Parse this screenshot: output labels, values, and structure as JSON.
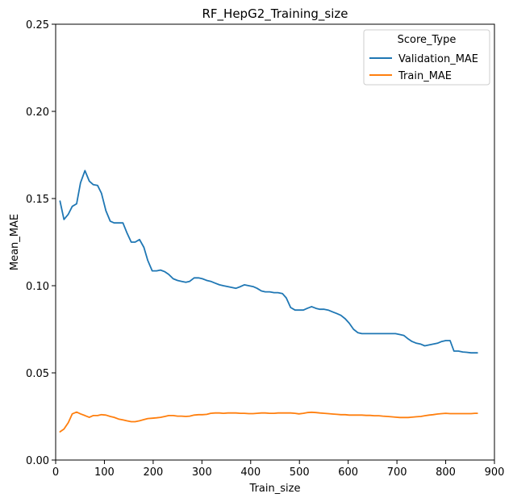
{
  "chart_data": {
    "type": "line",
    "title": "RF_HepG2_Training_size",
    "xlabel": "Train_size",
    "ylabel": "Mean_MAE",
    "xlim": [
      0,
      900
    ],
    "ylim": [
      0,
      0.25
    ],
    "x_ticks": [
      "0",
      "100",
      "200",
      "300",
      "400",
      "500",
      "600",
      "700",
      "800",
      "900"
    ],
    "y_ticks": [
      "0.00",
      "0.05",
      "0.10",
      "0.15",
      "0.20",
      "0.25"
    ],
    "grid": false,
    "legend": {
      "title": "Score_Type",
      "position": "top-right"
    },
    "series": [
      {
        "name": "Validation_MAE",
        "color": "#1f77b4",
        "x": [
          9,
          17,
          26,
          34,
          43,
          51,
          60,
          69,
          77,
          86,
          94,
          103,
          112,
          120,
          129,
          138,
          146,
          155,
          163,
          172,
          181,
          189,
          198,
          207,
          215,
          224,
          232,
          241,
          250,
          258,
          267,
          275,
          284,
          293,
          301,
          310,
          318,
          327,
          336,
          344,
          353,
          362,
          370,
          379,
          387,
          396,
          405,
          413,
          422,
          430,
          439,
          448,
          456,
          465,
          473,
          482,
          491,
          499,
          508,
          516,
          525,
          534,
          542,
          551,
          559,
          568,
          577,
          585,
          594,
          602,
          611,
          620,
          628,
          637,
          645,
          654,
          663,
          671,
          680,
          688,
          697,
          706,
          714,
          723,
          731,
          740,
          749,
          757,
          766,
          774,
          783,
          792,
          800,
          809,
          817,
          826,
          835,
          843,
          852,
          860,
          865
        ],
        "values": [
          0.1485,
          0.138,
          0.141,
          0.1455,
          0.147,
          0.159,
          0.166,
          0.16,
          0.158,
          0.1575,
          0.153,
          0.143,
          0.137,
          0.136,
          0.136,
          0.136,
          0.1305,
          0.125,
          0.125,
          0.1265,
          0.122,
          0.1145,
          0.1085,
          0.1085,
          0.109,
          0.108,
          0.1065,
          0.104,
          0.103,
          0.1025,
          0.102,
          0.1025,
          0.1045,
          0.1045,
          0.104,
          0.103,
          0.1025,
          0.1015,
          0.1005,
          0.1,
          0.0995,
          0.099,
          0.0985,
          0.0995,
          0.1005,
          0.1,
          0.0995,
          0.0985,
          0.097,
          0.0965,
          0.0965,
          0.096,
          0.096,
          0.0955,
          0.093,
          0.0875,
          0.086,
          0.086,
          0.086,
          0.087,
          0.088,
          0.087,
          0.0865,
          0.0865,
          0.086,
          0.085,
          0.084,
          0.083,
          0.081,
          0.0785,
          0.075,
          0.073,
          0.0725,
          0.0725,
          0.0725,
          0.0725,
          0.0725,
          0.0725,
          0.0725,
          0.0725,
          0.0725,
          0.072,
          0.0715,
          0.0695,
          0.068,
          0.067,
          0.0665,
          0.0655,
          0.066,
          0.0665,
          0.067,
          0.068,
          0.0685,
          0.0685,
          0.0625,
          0.0625,
          0.062,
          0.0618,
          0.0615,
          0.0615,
          0.0615
        ]
      },
      {
        "name": "Train_MAE",
        "color": "#ff7f0e",
        "x": [
          9,
          17,
          26,
          34,
          43,
          51,
          60,
          69,
          77,
          86,
          94,
          103,
          112,
          120,
          129,
          138,
          146,
          155,
          163,
          172,
          181,
          189,
          198,
          207,
          215,
          224,
          232,
          241,
          250,
          258,
          267,
          275,
          284,
          293,
          301,
          310,
          318,
          327,
          336,
          344,
          353,
          362,
          370,
          379,
          387,
          396,
          405,
          413,
          422,
          430,
          439,
          448,
          456,
          465,
          473,
          482,
          491,
          499,
          508,
          516,
          525,
          534,
          542,
          551,
          559,
          568,
          577,
          585,
          594,
          602,
          611,
          620,
          628,
          637,
          645,
          654,
          663,
          671,
          680,
          688,
          697,
          706,
          714,
          723,
          731,
          740,
          749,
          757,
          766,
          774,
          783,
          792,
          800,
          809,
          817,
          826,
          835,
          843,
          852,
          860,
          865
        ],
        "values": [
          0.0162,
          0.0178,
          0.0215,
          0.0265,
          0.0275,
          0.0265,
          0.0255,
          0.0245,
          0.0255,
          0.0255,
          0.026,
          0.0258,
          0.025,
          0.0245,
          0.0235,
          0.023,
          0.0225,
          0.022,
          0.022,
          0.0225,
          0.0232,
          0.0238,
          0.024,
          0.0242,
          0.0245,
          0.025,
          0.0255,
          0.0255,
          0.0252,
          0.0252,
          0.025,
          0.0252,
          0.0258,
          0.026,
          0.026,
          0.0262,
          0.0268,
          0.027,
          0.027,
          0.0268,
          0.027,
          0.027,
          0.027,
          0.0268,
          0.0268,
          0.0266,
          0.0266,
          0.0268,
          0.027,
          0.027,
          0.0268,
          0.0268,
          0.027,
          0.027,
          0.027,
          0.027,
          0.0268,
          0.0265,
          0.0268,
          0.0272,
          0.0274,
          0.0272,
          0.027,
          0.0268,
          0.0266,
          0.0264,
          0.0262,
          0.026,
          0.026,
          0.0258,
          0.0258,
          0.0258,
          0.0258,
          0.0256,
          0.0256,
          0.0254,
          0.0254,
          0.0252,
          0.025,
          0.0248,
          0.0246,
          0.0244,
          0.0244,
          0.0244,
          0.0246,
          0.0248,
          0.025,
          0.0254,
          0.0258,
          0.026,
          0.0264,
          0.0266,
          0.0268,
          0.0266,
          0.0266,
          0.0266,
          0.0266,
          0.0266,
          0.0266,
          0.0268,
          0.0268
        ]
      }
    ]
  }
}
